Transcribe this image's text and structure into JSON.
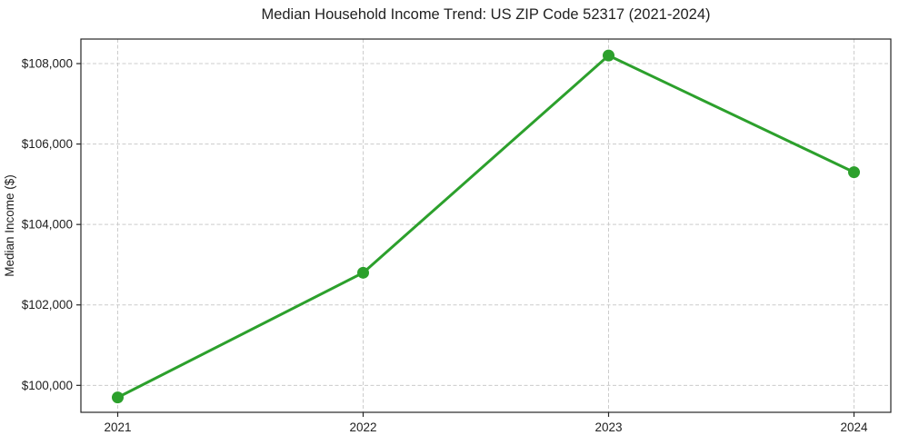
{
  "chart_data": {
    "type": "line",
    "title": "Median Household Income Trend: US ZIP Code 52317 (2021-2024)",
    "xlabel": "",
    "ylabel": "Median Income ($)",
    "x": [
      2021,
      2022,
      2023,
      2024
    ],
    "x_tick_labels": [
      "2021",
      "2022",
      "2023",
      "2024"
    ],
    "series": [
      {
        "name": "Median Household Income",
        "values": [
          99700,
          102800,
          108200,
          105300
        ]
      }
    ],
    "y_ticks": [
      100000,
      102000,
      104000,
      106000,
      108000
    ],
    "y_tick_labels": [
      "$100,000",
      "$102,000",
      "$104,000",
      "$106,000",
      "$108,000"
    ],
    "xlim": [
      2020.85,
      2024.15
    ],
    "ylim": [
      99330,
      108610
    ],
    "grid": true,
    "legend": "none",
    "line_color": "#2ca02c",
    "marker_color": "#2ca02c",
    "grid_color": "#cccccc",
    "spine_color": "#262626",
    "text_color": "#212121"
  }
}
